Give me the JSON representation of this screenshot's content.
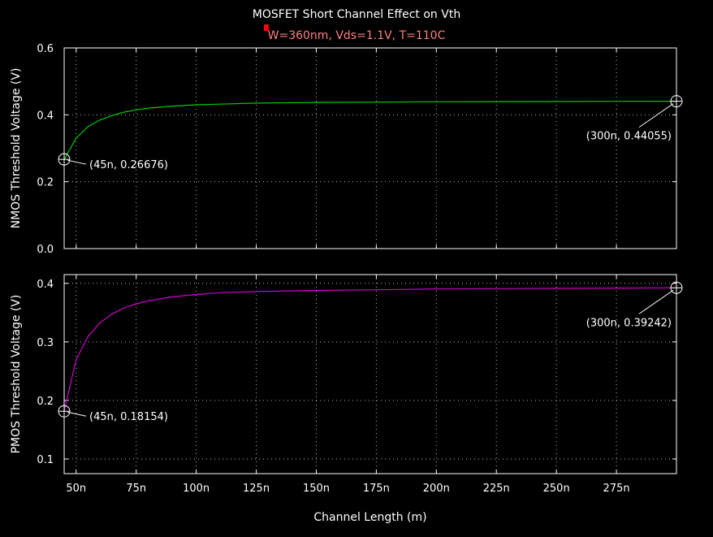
{
  "chart_data": {
    "type": "line",
    "title": "MOSFET Short Channel Effect on Vth",
    "subtitle": "W=360nm, Vds=1.1V, T=110C",
    "xlabel": "Channel Length (m)",
    "x_ticks": [
      "50n",
      "75n",
      "100n",
      "125n",
      "150n",
      "175n",
      "200n",
      "225n",
      "250n",
      "275n"
    ],
    "x_tick_values": [
      50,
      75,
      100,
      125,
      150,
      175,
      200,
      225,
      250,
      275
    ],
    "xlim": [
      45,
      300
    ],
    "grid": true,
    "background": "#000000",
    "panels": [
      {
        "ylabel": "NMOS Threshold Voltage (V)",
        "ylim": [
          0,
          0.6
        ],
        "y_ticks": [
          0.0,
          0.2,
          0.4,
          0.6
        ],
        "y_tick_labels": [
          "0.0",
          "0.2",
          "0.4",
          "0.6"
        ],
        "series": [
          {
            "color": "#00cc00",
            "x": [
              45,
              50,
              55,
              60,
              65,
              70,
              75,
              80,
              90,
              100,
              110,
              125,
              150,
              175,
              200,
              225,
              250,
              275,
              300
            ],
            "y": [
              0.26676,
              0.33,
              0.365,
              0.385,
              0.398,
              0.408,
              0.415,
              0.42,
              0.426,
              0.43,
              0.432,
              0.435,
              0.437,
              0.438,
              0.439,
              0.4395,
              0.44,
              0.4403,
              0.44055
            ]
          }
        ],
        "annotations": [
          {
            "x": 45,
            "y": 0.26676,
            "label": "(45n, 0.26676)",
            "side": "right"
          },
          {
            "x": 300,
            "y": 0.44055,
            "label": "(300n, 0.44055)",
            "side": "below-left"
          }
        ]
      },
      {
        "ylabel": "PMOS Threshold Voltage (V)",
        "ylim": [
          0.075,
          0.415
        ],
        "y_ticks": [
          0.1,
          0.2,
          0.3,
          0.4
        ],
        "y_tick_labels": [
          "0.1",
          "0.2",
          "0.3",
          "0.4"
        ],
        "series": [
          {
            "color": "#cc00cc",
            "x": [
              45,
              50,
              55,
              60,
              65,
              70,
              75,
              80,
              90,
              100,
              110,
              125,
              150,
              175,
              200,
              225,
              250,
              275,
              300
            ],
            "y": [
              0.18154,
              0.27,
              0.31,
              0.333,
              0.348,
              0.358,
              0.365,
              0.37,
              0.377,
              0.381,
              0.384,
              0.386,
              0.388,
              0.389,
              0.3905,
              0.391,
              0.3915,
              0.392,
              0.39242
            ]
          }
        ],
        "annotations": [
          {
            "x": 45,
            "y": 0.18154,
            "label": "(45n, 0.18154)",
            "side": "right"
          },
          {
            "x": 300,
            "y": 0.39242,
            "label": "(300n, 0.39242)",
            "side": "below-left"
          }
        ]
      }
    ]
  }
}
